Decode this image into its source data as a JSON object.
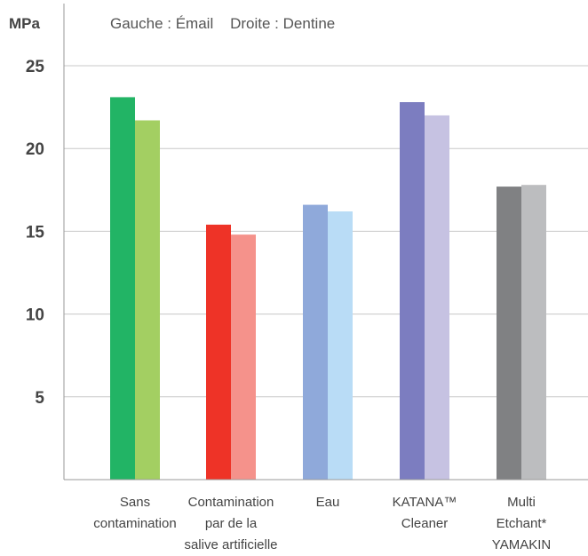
{
  "chart_data": {
    "type": "bar",
    "y_unit_label": "MPa",
    "legend_text": "Gauche : Émail    Droite : Dentine",
    "ylim": [
      0,
      25
    ],
    "yticks": [
      "5",
      "10",
      "15",
      "20",
      "25"
    ],
    "grid": true,
    "categories": [
      [
        "Sans",
        "contamination"
      ],
      [
        "Contamination",
        "par de la",
        "salive artificielle"
      ],
      [
        "Eau"
      ],
      [
        "KATANA™",
        "Cleaner"
      ],
      [
        "Multi",
        "Etchant*",
        "YAMAKIN"
      ]
    ],
    "series": [
      {
        "values": [
          23.1,
          15.4,
          16.6,
          22.8,
          17.7
        ]
      },
      {
        "values": [
          21.7,
          14.8,
          16.2,
          22.0,
          17.8
        ]
      }
    ],
    "colors": [
      [
        "#22b465",
        "#a3cf62"
      ],
      [
        "#ee3327",
        "#f5928b"
      ],
      [
        "#8fa9da",
        "#b9dcf6"
      ],
      [
        "#7c7dc0",
        "#c6c2e2"
      ],
      [
        "#808183",
        "#bcbdbf"
      ]
    ],
    "gridline_color": "#c8c8c8",
    "axis_color": "#999999"
  }
}
